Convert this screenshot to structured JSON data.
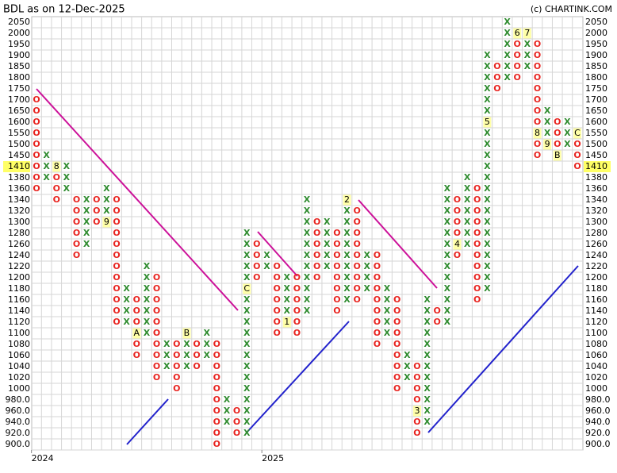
{
  "chart_data": {
    "type": "point_and_figure",
    "title": "BDL as on 12-Dec-2025",
    "credit": "(c) CHARTINK.COM",
    "last_price": 1410,
    "grid": true,
    "x_color": "#2e8b2e",
    "o_color": "#e8231f",
    "yticks": [
      2050,
      2000,
      1950,
      1900,
      1850,
      1800,
      1750,
      1700,
      1650,
      1600,
      1550,
      1500,
      1450,
      1410,
      1380,
      1360,
      1340,
      1320,
      1300,
      1280,
      1260,
      1240,
      1220,
      1200,
      1180,
      1160,
      1140,
      1120,
      1100,
      1080,
      1060,
      1040,
      1020,
      1000,
      {
        "value": 980,
        "label": "980.0"
      },
      {
        "value": 960,
        "label": "960.0"
      },
      {
        "value": 940,
        "label": "940.0"
      },
      {
        "value": 920,
        "label": "920.0"
      },
      {
        "value": 900,
        "label": "900.0"
      }
    ],
    "year_labels": [
      {
        "label": "2024",
        "column": 0
      },
      {
        "label": "2025",
        "column": 23
      }
    ],
    "columns": [
      {
        "type": "O",
        "low": 1360,
        "high": 1700
      },
      {
        "type": "X",
        "low": 1380,
        "high": 1450
      },
      {
        "type": "O",
        "low": 1340,
        "high": 1410,
        "markers": [
          {
            "label": "8",
            "value": 1410
          }
        ]
      },
      {
        "type": "X",
        "low": 1360,
        "high": 1410
      },
      {
        "type": "O",
        "low": 1240,
        "high": 1340
      },
      {
        "type": "X",
        "low": 1260,
        "high": 1340
      },
      {
        "type": "O",
        "low": 1300,
        "high": 1340
      },
      {
        "type": "X",
        "low": 1300,
        "high": 1360,
        "markers": [
          {
            "label": "9",
            "value": 1300
          }
        ]
      },
      {
        "type": "O",
        "low": 1120,
        "high": 1340
      },
      {
        "type": "X",
        "low": 1120,
        "high": 1180
      },
      {
        "type": "O",
        "low": 1060,
        "high": 1160,
        "markers": [
          {
            "label": "A",
            "value": 1100
          }
        ]
      },
      {
        "type": "X",
        "low": 1100,
        "high": 1220
      },
      {
        "type": "O",
        "low": 1020,
        "high": 1200
      },
      {
        "type": "X",
        "low": 1040,
        "high": 1080
      },
      {
        "type": "O",
        "low": 1000,
        "high": 1080
      },
      {
        "type": "X",
        "low": 1040,
        "high": 1100,
        "markers": [
          {
            "label": "B",
            "value": 1100
          }
        ]
      },
      {
        "type": "O",
        "low": 1040,
        "high": 1080
      },
      {
        "type": "X",
        "low": 1060,
        "high": 1100
      },
      {
        "type": "O",
        "low": 900,
        "high": 1080
      },
      {
        "type": "X",
        "low": 940,
        "high": 980
      },
      {
        "type": "O",
        "low": 920,
        "high": 960
      },
      {
        "type": "X",
        "low": 920,
        "high": 1280,
        "markers": [
          {
            "label": "C",
            "value": 1180
          }
        ]
      },
      {
        "type": "O",
        "low": 1200,
        "high": 1260
      },
      {
        "type": "X",
        "low": 1220,
        "high": 1240
      },
      {
        "type": "O",
        "low": 1100,
        "high": 1220
      },
      {
        "type": "X",
        "low": 1120,
        "high": 1200,
        "markers": [
          {
            "label": "1",
            "value": 1120
          }
        ]
      },
      {
        "type": "O",
        "low": 1100,
        "high": 1200
      },
      {
        "type": "X",
        "low": 1140,
        "high": 1340
      },
      {
        "type": "O",
        "low": 1200,
        "high": 1300
      },
      {
        "type": "X",
        "low": 1220,
        "high": 1300
      },
      {
        "type": "O",
        "low": 1140,
        "high": 1280
      },
      {
        "type": "X",
        "low": 1160,
        "high": 1340,
        "markers": [
          {
            "label": "2",
            "value": 1340
          }
        ]
      },
      {
        "type": "O",
        "low": 1160,
        "high": 1320
      },
      {
        "type": "X",
        "low": 1180,
        "high": 1240
      },
      {
        "type": "O",
        "low": 1080,
        "high": 1240
      },
      {
        "type": "X",
        "low": 1100,
        "high": 1180
      },
      {
        "type": "O",
        "low": 1000,
        "high": 1160
      },
      {
        "type": "X",
        "low": 1020,
        "high": 1060
      },
      {
        "type": "O",
        "low": 920,
        "high": 1040,
        "markers": [
          {
            "label": "3",
            "value": 960
          }
        ]
      },
      {
        "type": "X",
        "low": 940,
        "high": 1160
      },
      {
        "type": "O",
        "low": 1120,
        "high": 1140
      },
      {
        "type": "X",
        "low": 1120,
        "high": 1360
      },
      {
        "type": "O",
        "low": 1240,
        "high": 1340,
        "markers": [
          {
            "label": "4",
            "value": 1260
          }
        ]
      },
      {
        "type": "X",
        "low": 1260,
        "high": 1380
      },
      {
        "type": "O",
        "low": 1160,
        "high": 1360
      },
      {
        "type": "X",
        "low": 1180,
        "high": 1900,
        "markers": [
          {
            "label": "5",
            "value": 1600
          }
        ]
      },
      {
        "type": "O",
        "low": 1750,
        "high": 1850
      },
      {
        "type": "X",
        "low": 1800,
        "high": 2050
      },
      {
        "type": "O",
        "low": 1800,
        "high": 2000,
        "markers": [
          {
            "label": "6",
            "value": 2000
          }
        ]
      },
      {
        "type": "X",
        "low": 1850,
        "high": 2000,
        "markers": [
          {
            "label": "7",
            "value": 2000
          }
        ]
      },
      {
        "type": "O",
        "low": 1450,
        "high": 1950,
        "markers": [
          {
            "label": "8",
            "value": 1550
          }
        ]
      },
      {
        "type": "X",
        "low": 1500,
        "high": 1650,
        "markers": [
          {
            "label": "9",
            "value": 1500
          }
        ]
      },
      {
        "type": "O",
        "low": 1450,
        "high": 1600,
        "markers": [
          {
            "label": "B",
            "value": 1450
          }
        ]
      },
      {
        "type": "X",
        "low": 1500,
        "high": 1600
      },
      {
        "type": "O",
        "low": 1410,
        "high": 1550,
        "markers": [
          {
            "label": "C",
            "value": 1550
          }
        ]
      }
    ]
  }
}
